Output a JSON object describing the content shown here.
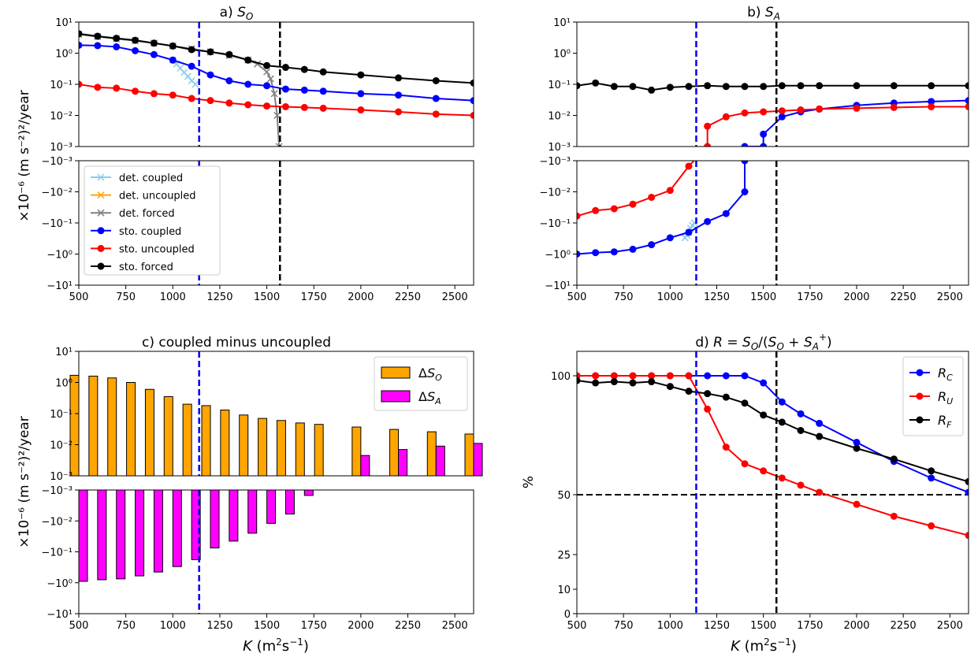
{
  "common": {
    "ylabel_top": "×10⁻⁶ (m s⁻²)²/year",
    "xlabel": "K (m²s⁻¹)",
    "x_ticks": [
      500,
      750,
      1000,
      1250,
      1500,
      1750,
      2000,
      2250,
      2500
    ],
    "xlim": [
      500,
      2600
    ],
    "log_upper_ticks": [
      "10¹",
      "10⁰",
      "10⁻¹",
      "10⁻²",
      "10⁻³"
    ],
    "log_lower_ticks": [
      "−10⁻³",
      "−10⁻²",
      "−10⁻¹",
      "−10⁰",
      "−10¹"
    ],
    "vlines": [
      {
        "x": 1140,
        "color": "#0000ff",
        "style": "dashed"
      },
      {
        "x": 1570,
        "color": "#000000",
        "style": "dashed"
      }
    ]
  },
  "chart_data": [
    {
      "panel": "a",
      "type": "line",
      "title": "a) S_O",
      "yscale": "symlog",
      "ylim": [
        -10,
        10
      ],
      "legend": "upper-left of lower part",
      "series": [
        {
          "name": "det. coupled",
          "color": "#87ceeb",
          "marker": "x",
          "x": [
            1000,
            1020,
            1040,
            1060,
            1080,
            1100,
            1120
          ],
          "y": [
            0.6,
            0.45,
            0.33,
            0.24,
            0.18,
            0.13,
            0.1
          ]
        },
        {
          "name": "det. uncoupled",
          "color": "#ffa500",
          "marker": "x",
          "x": [],
          "y": []
        },
        {
          "name": "det. forced",
          "color": "#808080",
          "marker": "x",
          "x": [
            500,
            600,
            700,
            800,
            900,
            1000,
            1100,
            1200,
            1300,
            1400,
            1450,
            1500,
            1520,
            1540,
            1555,
            1565
          ],
          "y": [
            4,
            3.4,
            2.9,
            2.5,
            2.1,
            1.7,
            1.4,
            1.1,
            0.85,
            0.6,
            0.45,
            0.25,
            0.15,
            0.05,
            0.01,
            0.001
          ]
        },
        {
          "name": "sto. coupled",
          "color": "#0000ff",
          "marker": "o",
          "x": [
            500,
            600,
            700,
            800,
            900,
            1000,
            1100,
            1200,
            1300,
            1400,
            1500,
            1600,
            1700,
            1800,
            2000,
            2200,
            2400,
            2600
          ],
          "y": [
            1.8,
            1.75,
            1.6,
            1.2,
            0.9,
            0.6,
            0.38,
            0.2,
            0.13,
            0.1,
            0.09,
            0.07,
            0.065,
            0.06,
            0.05,
            0.045,
            0.035,
            0.03
          ]
        },
        {
          "name": "sto. uncoupled",
          "color": "#ff0000",
          "marker": "o",
          "x": [
            500,
            600,
            700,
            800,
            900,
            1000,
            1100,
            1200,
            1300,
            1400,
            1500,
            1600,
            1700,
            1800,
            2000,
            2200,
            2400,
            2600
          ],
          "y": [
            0.1,
            0.08,
            0.075,
            0.06,
            0.05,
            0.045,
            0.035,
            0.03,
            0.025,
            0.022,
            0.02,
            0.019,
            0.018,
            0.017,
            0.015,
            0.013,
            0.011,
            0.01
          ]
        },
        {
          "name": "sto. forced",
          "color": "#000000",
          "marker": "o",
          "x": [
            500,
            600,
            700,
            800,
            900,
            1000,
            1100,
            1200,
            1300,
            1400,
            1500,
            1600,
            1700,
            1800,
            2000,
            2200,
            2400,
            2600
          ],
          "y": [
            4.2,
            3.5,
            3.0,
            2.6,
            2.1,
            1.7,
            1.3,
            1.1,
            0.9,
            0.6,
            0.4,
            0.35,
            0.3,
            0.25,
            0.2,
            0.16,
            0.13,
            0.11
          ]
        }
      ]
    },
    {
      "panel": "b",
      "type": "line",
      "title": "b) S_A",
      "yscale": "symlog",
      "ylim": [
        -10,
        10
      ],
      "series": [
        {
          "name": "det. coupled",
          "color": "#87ceeb",
          "marker": "x",
          "x": [
            1080,
            1090,
            1100,
            1110,
            1120,
            1130
          ],
          "y": [
            -0.3,
            -0.25,
            -0.2,
            -0.15,
            -0.12,
            -0.1
          ]
        },
        {
          "name": "sto. coupled",
          "color": "#0000ff",
          "marker": "o",
          "x": [
            500,
            600,
            700,
            800,
            900,
            1000,
            1100,
            1200,
            1300,
            1400,
            1400,
            1400,
            1500,
            1500,
            1600,
            1700,
            1800,
            2000,
            2200,
            2400,
            2600
          ],
          "y": [
            -1.0,
            -0.9,
            -0.85,
            -0.7,
            -0.5,
            -0.3,
            -0.2,
            -0.09,
            -0.05,
            -0.01,
            -0.001,
            0.001,
            0.001,
            0.0025,
            0.009,
            0.013,
            0.016,
            0.021,
            0.025,
            0.028,
            0.03
          ]
        },
        {
          "name": "sto. uncoupled",
          "color": "#ff0000",
          "marker": "o",
          "x": [
            500,
            600,
            700,
            800,
            900,
            1000,
            1100,
            1200,
            1200,
            1300,
            1400,
            1500,
            1600,
            1700,
            1800,
            2000,
            2200,
            2400,
            2600
          ],
          "y": [
            -0.06,
            -0.04,
            -0.035,
            -0.025,
            -0.015,
            -0.009,
            -0.0015,
            0.001,
            0.0045,
            0.009,
            0.012,
            0.013,
            0.014,
            0.015,
            0.016,
            0.017,
            0.018,
            0.019,
            0.019
          ]
        },
        {
          "name": "sto. forced",
          "color": "#000000",
          "marker": "o",
          "x": [
            500,
            600,
            700,
            800,
            900,
            1000,
            1100,
            1200,
            1300,
            1400,
            1500,
            1600,
            1700,
            1800,
            2000,
            2200,
            2400,
            2600
          ],
          "y": [
            0.09,
            0.11,
            0.085,
            0.085,
            0.065,
            0.08,
            0.085,
            0.09,
            0.085,
            0.085,
            0.085,
            0.09,
            0.09,
            0.09,
            0.09,
            0.09,
            0.09,
            0.09
          ]
        }
      ]
    },
    {
      "panel": "c",
      "type": "bar",
      "title": "c) coupled minus uncoupled",
      "yscale": "symlog",
      "ylim": [
        -10,
        10
      ],
      "legend": "top-right",
      "x": [
        500,
        600,
        700,
        800,
        900,
        1000,
        1100,
        1200,
        1300,
        1400,
        1500,
        1600,
        1700,
        1800,
        2000,
        2200,
        2400,
        2600
      ],
      "series": [
        {
          "name": "ΔS_O",
          "color": "#ffa500",
          "values": [
            1.7,
            1.6,
            1.4,
            1.0,
            0.6,
            0.35,
            0.2,
            0.18,
            0.13,
            0.09,
            0.07,
            0.06,
            0.05,
            0.045,
            0.037,
            0.031,
            0.026,
            0.022
          ]
        },
        {
          "name": "ΔS_A",
          "color": "#ff00ff",
          "values": [
            -0.9,
            -0.8,
            -0.75,
            -0.6,
            -0.45,
            -0.3,
            -0.18,
            -0.075,
            -0.045,
            -0.025,
            -0.012,
            -0.006,
            -0.0015,
            null,
            0.0045,
            0.007,
            0.009,
            0.011
          ]
        }
      ]
    },
    {
      "panel": "d",
      "type": "line",
      "title": "d) R = S_O/(S_O + S_A⁺)",
      "ylabel": "%",
      "y_ticks": [
        0,
        10,
        25,
        50,
        100
      ],
      "ylim": [
        0,
        110
      ],
      "hline": 50,
      "legend": "top-right",
      "series": [
        {
          "name": "R_C",
          "color": "#0000ff",
          "marker": "o",
          "x": [
            500,
            600,
            700,
            800,
            900,
            1000,
            1100,
            1200,
            1300,
            1400,
            1500,
            1600,
            1700,
            1800,
            2000,
            2200,
            2400,
            2600
          ],
          "y": [
            100,
            100,
            100,
            100,
            100,
            100,
            100,
            100,
            100,
            100,
            97,
            89,
            84,
            80,
            72,
            64,
            57,
            51
          ]
        },
        {
          "name": "R_U",
          "color": "#ff0000",
          "marker": "o",
          "x": [
            500,
            600,
            700,
            800,
            900,
            1000,
            1100,
            1200,
            1300,
            1400,
            1500,
            1600,
            1700,
            1800,
            2000,
            2200,
            2400,
            2600
          ],
          "y": [
            100,
            100,
            100,
            100,
            100,
            100,
            100,
            86,
            70,
            63,
            60,
            57,
            54,
            51,
            46,
            41,
            37,
            33
          ]
        },
        {
          "name": "R_F",
          "color": "#000000",
          "marker": "o",
          "x": [
            500,
            600,
            700,
            800,
            900,
            1000,
            1100,
            1200,
            1300,
            1400,
            1500,
            1600,
            1700,
            1800,
            2000,
            2200,
            2400,
            2600
          ],
          "y": [
            98,
            97,
            97.5,
            97,
            97.5,
            95.5,
            93.5,
            92.5,
            91,
            88.5,
            83.5,
            80.5,
            77,
            74.5,
            69.5,
            65,
            60,
            55.5
          ]
        }
      ]
    }
  ]
}
